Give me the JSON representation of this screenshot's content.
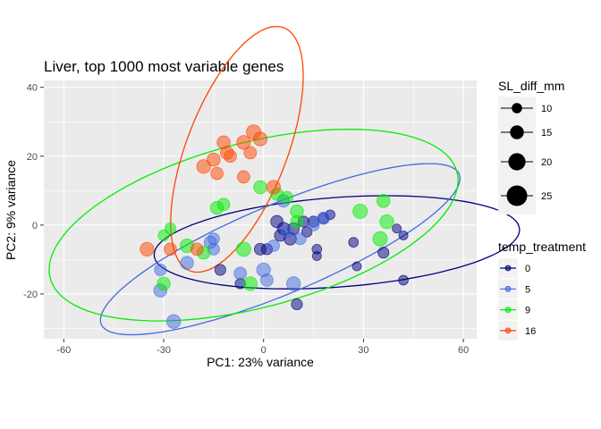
{
  "chart_data": {
    "type": "scatter",
    "title": "Liver, top 1000 most variable genes",
    "xlabel": "PC1: 23% variance",
    "ylabel": "PC2: 9% variance",
    "xlim": [
      -66,
      64
    ],
    "ylim": [
      -33,
      42
    ],
    "xticks": [
      -60,
      -30,
      0,
      30,
      60
    ],
    "yticks": [
      -20,
      0,
      20,
      40
    ],
    "grid": true,
    "size_legend": {
      "title": "SL_diff_mm",
      "entries": [
        {
          "label": "10",
          "value": 10
        },
        {
          "label": "15",
          "value": 15
        },
        {
          "label": "20",
          "value": 20
        },
        {
          "label": "25",
          "value": 25
        }
      ]
    },
    "color_legend": {
      "title": "temp_treatment",
      "entries": [
        {
          "label": "0",
          "color": "#000080"
        },
        {
          "label": "5",
          "color": "#4169E1"
        },
        {
          "label": "9",
          "color": "#00EE00"
        },
        {
          "label": "16",
          "color": "#FF4500"
        }
      ]
    },
    "series": [
      {
        "group": "0",
        "color": "#000080",
        "ellipse": {
          "cx": 22,
          "cy": -5,
          "rx": 55,
          "ry": 13,
          "angle_deg": 4
        },
        "points": [
          [
            4,
            1,
            13
          ],
          [
            6,
            -1,
            13
          ],
          [
            5,
            -3,
            12
          ],
          [
            8,
            -4,
            13
          ],
          [
            9,
            -1,
            12
          ],
          [
            12,
            1,
            11
          ],
          [
            15,
            1,
            11
          ],
          [
            18,
            2,
            10
          ],
          [
            20,
            3,
            9
          ],
          [
            13,
            -2,
            10
          ],
          [
            16,
            -7,
            9
          ],
          [
            16,
            -9,
            8
          ],
          [
            27,
            -5,
            9
          ],
          [
            28,
            -12,
            8
          ],
          [
            36,
            -8,
            11
          ],
          [
            40,
            -1,
            8
          ],
          [
            42,
            -3,
            8
          ],
          [
            42,
            -16,
            9
          ],
          [
            10,
            -23,
            11
          ],
          [
            -1,
            -7,
            12
          ],
          [
            1,
            -7,
            11
          ],
          [
            -13,
            -13,
            11
          ],
          [
            -7,
            -17,
            10
          ]
        ]
      },
      {
        "group": "5",
        "color": "#4169E1",
        "ellipse": {
          "cx": 5,
          "cy": -7,
          "rx": 58,
          "ry": 13,
          "angle_deg": 22
        },
        "points": [
          [
            -27,
            -28,
            15
          ],
          [
            -31,
            -19,
            14
          ],
          [
            -31,
            -13,
            12
          ],
          [
            -23,
            -11,
            14
          ],
          [
            -16,
            -5,
            13
          ],
          [
            -15,
            -7,
            12
          ],
          [
            -15,
            -4,
            12
          ],
          [
            -7,
            -14,
            13
          ],
          [
            0,
            -13,
            15
          ],
          [
            1,
            -16,
            13
          ],
          [
            3,
            -6,
            12
          ],
          [
            6,
            7,
            13
          ],
          [
            9,
            -17,
            15
          ],
          [
            11,
            -4,
            12
          ],
          [
            15,
            0,
            12
          ],
          [
            18,
            2,
            13
          ],
          [
            7,
            -2,
            12
          ]
        ]
      },
      {
        "group": "9",
        "color": "#00EE00",
        "ellipse": {
          "cx": -3,
          "cy": 0,
          "rx": 63,
          "ry": 24,
          "angle_deg": 14
        },
        "points": [
          [
            -30,
            -3,
            11
          ],
          [
            -28,
            -1,
            11
          ],
          [
            -30,
            -17,
            14
          ],
          [
            -23,
            -6,
            15
          ],
          [
            -18,
            -8,
            14
          ],
          [
            -14,
            5,
            14
          ],
          [
            -12,
            6,
            13
          ],
          [
            -6,
            -7,
            16
          ],
          [
            -4,
            -17,
            15
          ],
          [
            -1,
            11,
            14
          ],
          [
            4,
            9,
            13
          ],
          [
            7,
            8,
            13
          ],
          [
            10,
            4,
            14
          ],
          [
            10,
            1,
            13
          ],
          [
            29,
            4,
            16
          ],
          [
            36,
            7,
            14
          ],
          [
            37,
            1,
            15
          ],
          [
            35,
            -4,
            16
          ]
        ]
      },
      {
        "group": "16",
        "color": "#FF4500",
        "ellipse": {
          "cx": -8,
          "cy": 22,
          "rx": 38,
          "ry": 15,
          "angle_deg": 68
        },
        "points": [
          [
            -35,
            -7,
            15
          ],
          [
            -28,
            -7,
            13
          ],
          [
            -18,
            17,
            15
          ],
          [
            -15,
            19,
            14
          ],
          [
            -14,
            15,
            13
          ],
          [
            -12,
            24,
            14
          ],
          [
            -11,
            21,
            14
          ],
          [
            -10,
            20,
            13
          ],
          [
            -6,
            24,
            15
          ],
          [
            -4,
            21,
            13
          ],
          [
            -3,
            27,
            16
          ],
          [
            -1,
            25,
            15
          ],
          [
            -6,
            14,
            13
          ],
          [
            3,
            11,
            15
          ],
          [
            -20,
            -7,
            13
          ]
        ]
      }
    ]
  }
}
